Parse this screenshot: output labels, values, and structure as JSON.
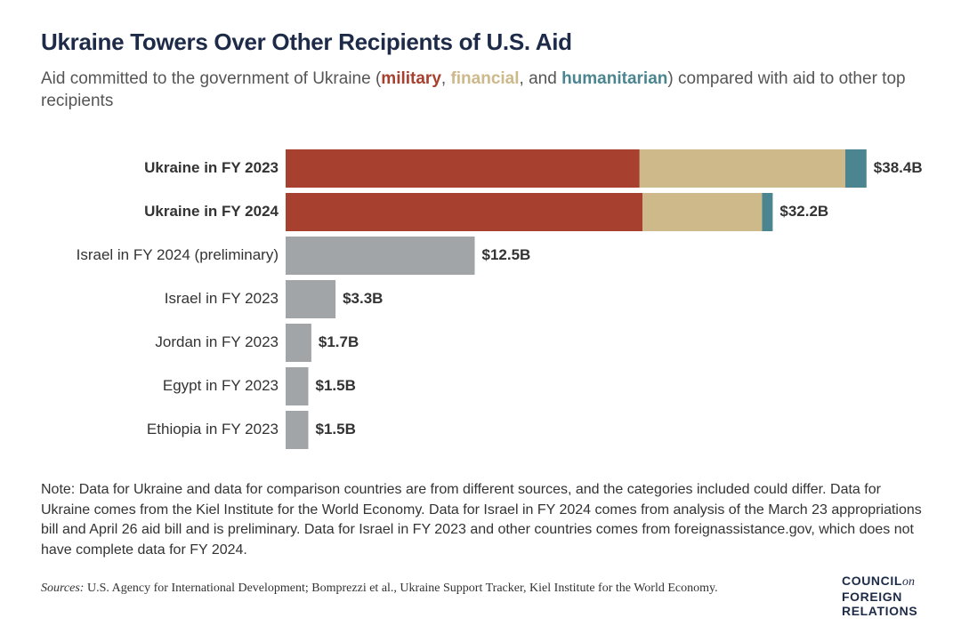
{
  "chart_data": {
    "type": "stacked-bar-horizontal",
    "title": "Ukraine Towers Over Other Recipients of U.S. Aid",
    "subtitle": [
      "Aid committed to the government of Ukraine (",
      ", ",
      ", and ",
      ") compared with aid to other top recipients"
    ],
    "categories": [
      "Ukraine in FY 2023",
      "Ukraine in FY 2024",
      "Israel in FY 2024 (preliminary)",
      "Israel in FY 2023",
      "Jordan in FY 2023",
      "Egypt in FY 2023",
      "Ethiopia in FY 2023"
    ],
    "series": [
      {
        "name": "military",
        "color": "#a8402f",
        "values": [
          23.4,
          23.6,
          null,
          null,
          null,
          null,
          null
        ]
      },
      {
        "name": "financial",
        "color": "#cdb98a",
        "values": [
          13.6,
          7.9,
          null,
          null,
          null,
          null,
          null
        ]
      },
      {
        "name": "humanitarian",
        "color": "#4b8590",
        "values": [
          1.4,
          0.7,
          null,
          null,
          null,
          null,
          null
        ]
      },
      {
        "color": "#a2a5a8",
        "values": [
          null,
          null,
          12.5,
          3.3,
          1.7,
          1.5,
          1.5
        ]
      }
    ],
    "totals": {
      "values": [
        38.4,
        32.2,
        12.5,
        3.3,
        1.7,
        1.5,
        1.5
      ],
      "value_labels": [
        "$38.4B",
        "$32.2B",
        "$12.5B",
        "$3.3B",
        "$1.7B",
        "$1.5B",
        "$1.5B"
      ]
    },
    "xlim": [
      0,
      40
    ],
    "note": "Note: Data for Ukraine and data for comparison countries are from different sources, and the categories included could differ. Data for Ukraine comes from the Kiel Institute for the World Economy. Data for Israel in FY 2024 comes from analysis of the March 23 appropriations bill and April 26 aid bill and is preliminary. Data for Israel in FY 2023 and other countries comes from foreignassistance.gov, which does not have complete data for FY 2024.",
    "sources_label": "Sources:",
    "sources": "U.S. Agency for International Development; Bomprezzi et al., Ukraine Support Tracker, Kiel Institute for the World Economy.",
    "logo": [
      "COUNCIL",
      "on",
      "FOREIGN",
      "RELATIONS"
    ]
  }
}
